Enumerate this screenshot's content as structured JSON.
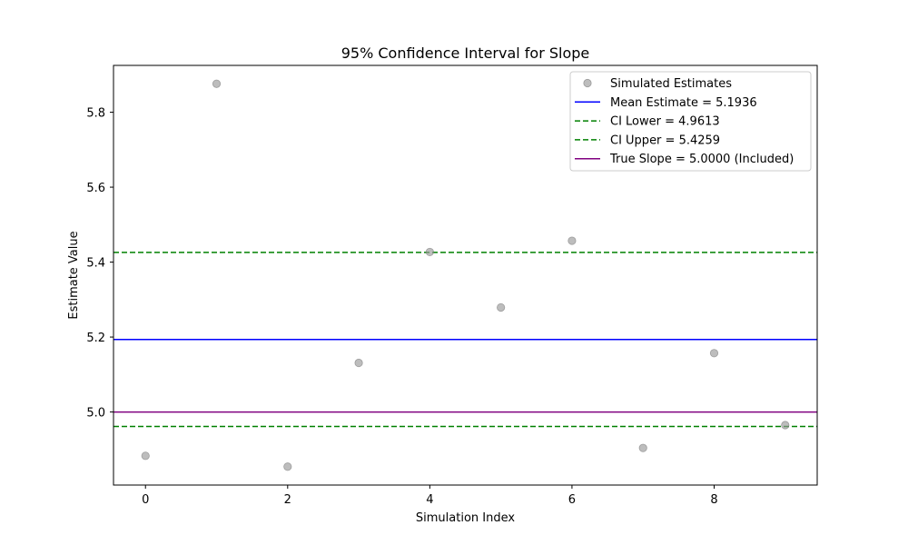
{
  "chart_data": {
    "type": "scatter",
    "title": "95% Confidence Interval for Slope",
    "xlabel": "Simulation Index",
    "ylabel": "Estimate Value",
    "xlim": [
      -0.45,
      9.45
    ],
    "ylim": [
      4.805,
      5.925
    ],
    "xticks": [
      0,
      2,
      4,
      6,
      8
    ],
    "yticks": [
      5.0,
      5.2,
      5.4,
      5.6,
      5.8
    ],
    "ytick_labels": [
      "5.0",
      "5.2",
      "5.4",
      "5.6",
      "5.8"
    ],
    "grid": false,
    "legend_position": "top-right",
    "scatter": {
      "name": "Simulated Estimates",
      "color": "#999999",
      "x": [
        0,
        1,
        2,
        3,
        4,
        5,
        6,
        7,
        8,
        9
      ],
      "y": [
        4.883,
        5.876,
        4.854,
        5.131,
        5.427,
        5.279,
        5.457,
        4.904,
        5.157,
        4.965
      ]
    },
    "lines": [
      {
        "name": "Mean Estimate = 5.1936",
        "y": 5.1936,
        "color": "#0000ff",
        "style": "solid"
      },
      {
        "name": "CI Lower = 4.9613",
        "y": 4.9613,
        "color": "#008000",
        "style": "dashed"
      },
      {
        "name": "CI Upper = 5.4259",
        "y": 5.4259,
        "color": "#008000",
        "style": "dashed"
      },
      {
        "name": "True Slope = 5.0000 (Included)",
        "y": 5.0,
        "color": "#800080",
        "style": "solid"
      }
    ]
  }
}
